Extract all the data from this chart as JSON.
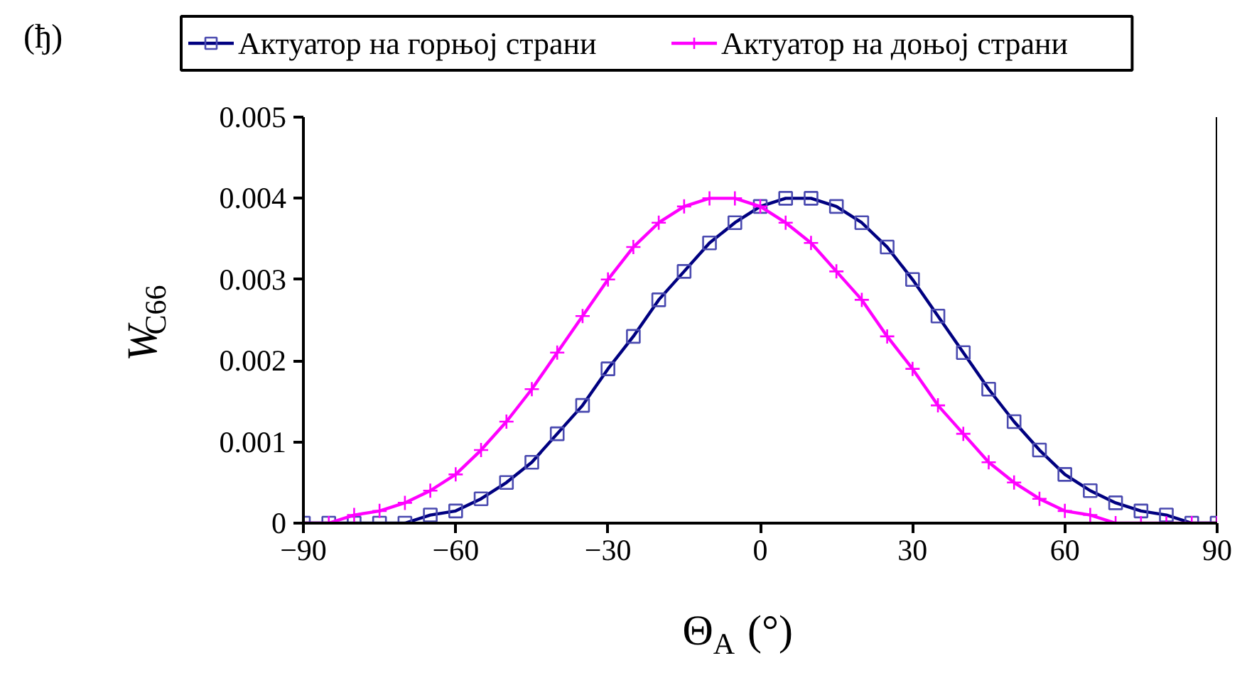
{
  "chart_data": {
    "type": "line",
    "xlabel": "Θ$_{A}$ (°)",
    "ylabel": "W$_{C66}$",
    "annotations": [
      "(ђ)"
    ],
    "x": [
      -90,
      -85,
      -80,
      -75,
      -70,
      -65,
      -60,
      -55,
      -50,
      -45,
      -40,
      -35,
      -30,
      -25,
      -20,
      -15,
      -10,
      -5,
      0,
      5,
      10,
      15,
      20,
      25,
      30,
      35,
      40,
      45,
      50,
      55,
      60,
      65,
      70,
      75,
      80,
      85,
      90
    ],
    "series": [
      {
        "name": "Актуатор на горњој страни",
        "color": "#000080",
        "marker": "square",
        "values": [
          0,
          0,
          0,
          0,
          0,
          0.0001,
          0.00015,
          0.0003,
          0.0005,
          0.00075,
          0.0011,
          0.00145,
          0.0019,
          0.0023,
          0.00275,
          0.0031,
          0.00345,
          0.0037,
          0.0039,
          0.004,
          0.004,
          0.0039,
          0.0037,
          0.0034,
          0.003,
          0.00255,
          0.0021,
          0.00165,
          0.00125,
          0.0009,
          0.0006,
          0.0004,
          0.00025,
          0.00015,
          0.0001,
          0,
          0
        ]
      },
      {
        "name": "Актуатор на доњој страни",
        "color": "#ff00ff",
        "marker": "cross",
        "values": [
          0,
          0,
          0.0001,
          0.00015,
          0.00025,
          0.0004,
          0.0006,
          0.0009,
          0.00125,
          0.00165,
          0.0021,
          0.00255,
          0.003,
          0.0034,
          0.0037,
          0.0039,
          0.004,
          0.004,
          0.0039,
          0.0037,
          0.00345,
          0.0031,
          0.00275,
          0.0023,
          0.0019,
          0.00145,
          0.0011,
          0.00075,
          0.0005,
          0.0003,
          0.00015,
          0.0001,
          0,
          0,
          0,
          0,
          0
        ]
      }
    ],
    "xlim": [
      -90,
      90
    ],
    "xticks": [
      -90,
      -60,
      -30,
      0,
      30,
      60,
      90
    ],
    "ylim": [
      0,
      0.005
    ],
    "yticks": [
      0,
      0.001,
      0.002,
      0.003,
      0.004,
      0.005
    ],
    "grid": false,
    "legend": "top",
    "line_style": "solid"
  }
}
